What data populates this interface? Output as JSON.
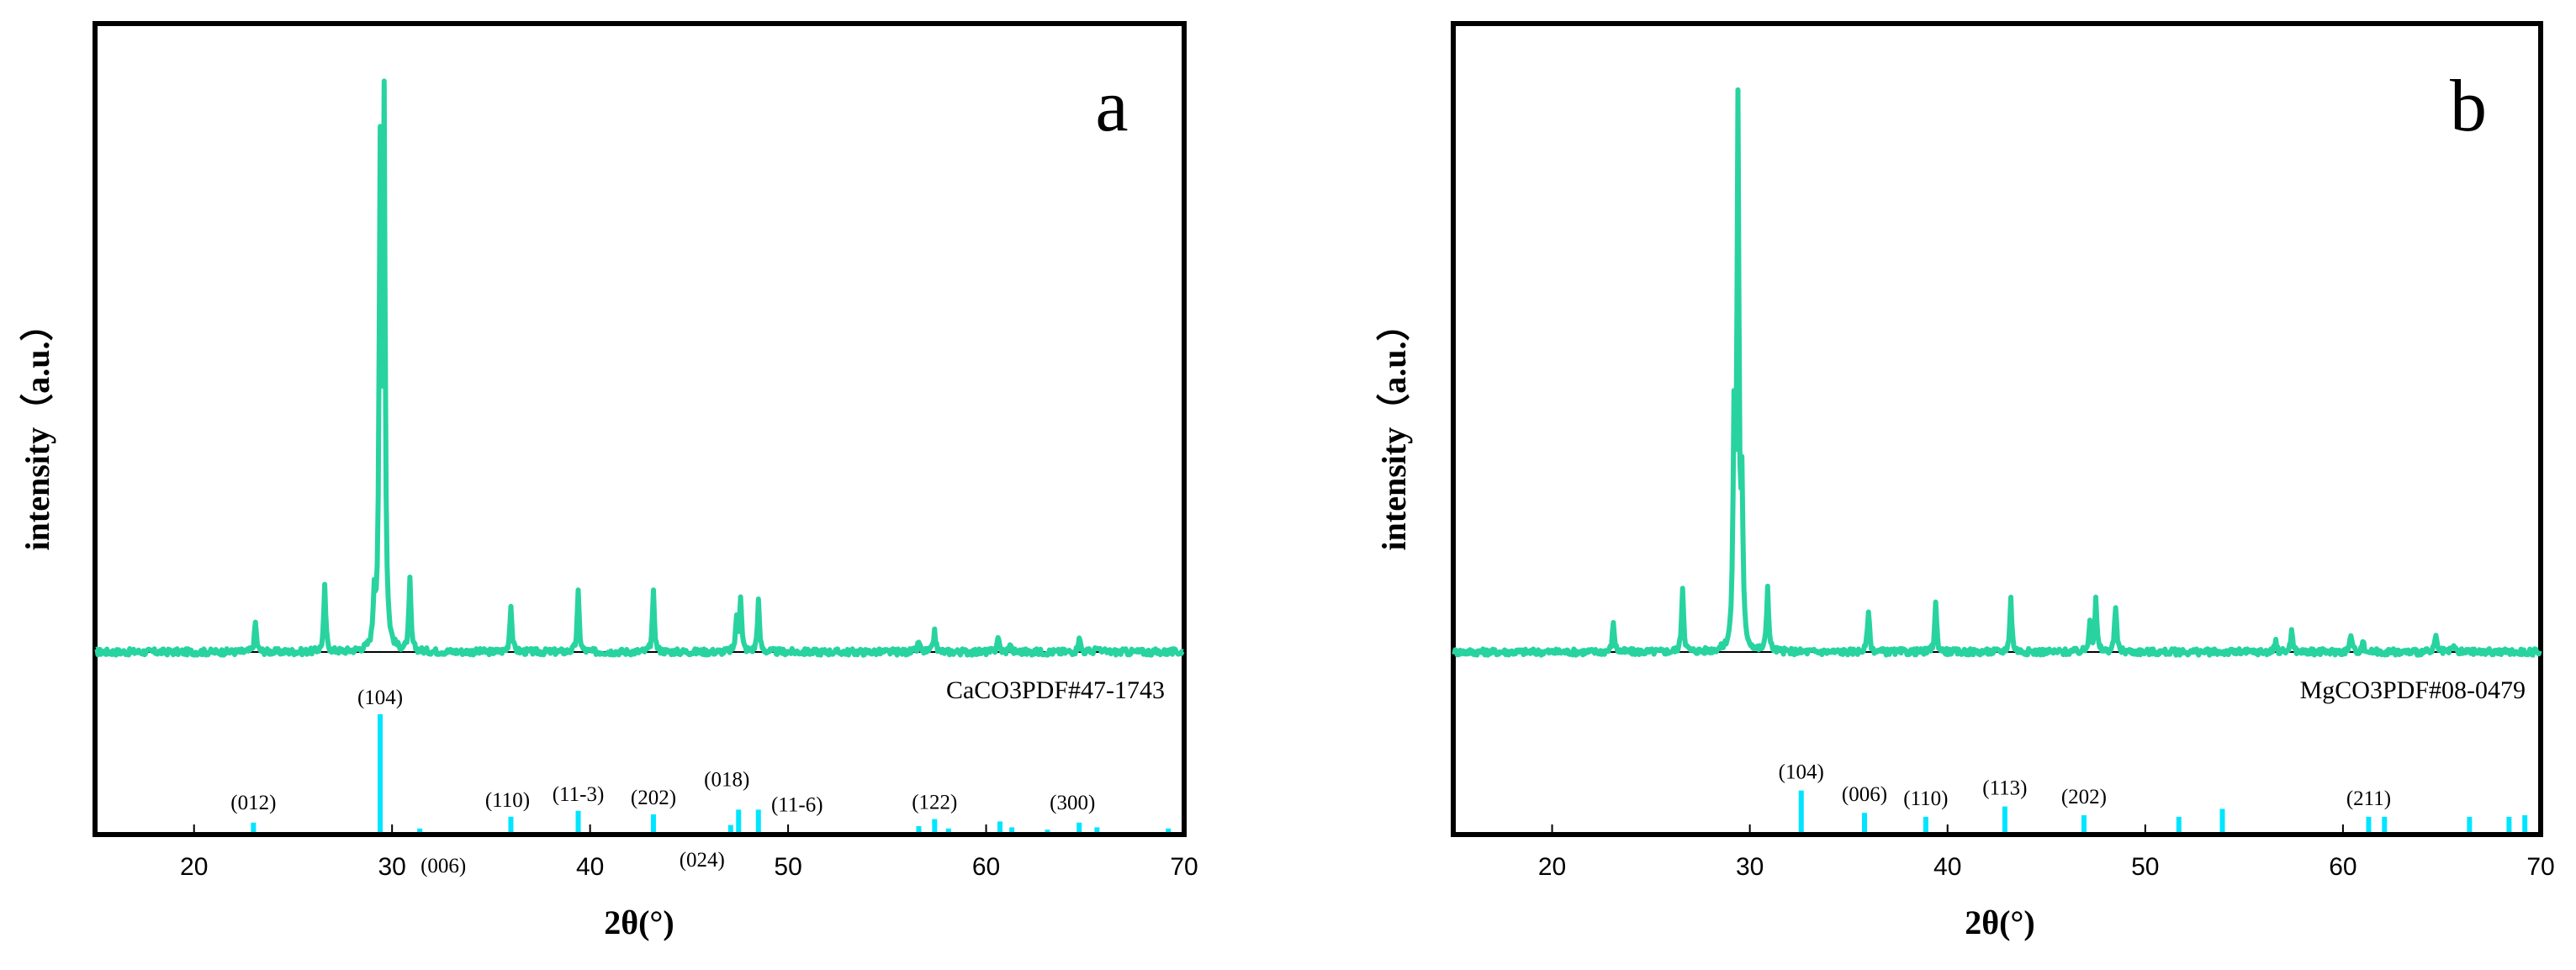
{
  "colors": {
    "pattern": "#28d3a0",
    "reference": "#00e5ff",
    "frame": "#000000"
  },
  "chart_data": [
    {
      "type": "line",
      "panel": "a",
      "title": "",
      "xlabel": "2θ(°)",
      "ylabel": "intensity（a.u.）",
      "xlim": [
        15,
        70
      ],
      "xticks": [
        20,
        30,
        40,
        50,
        60,
        70
      ],
      "grid": false,
      "pattern_peaks": [
        {
          "x": 23.1,
          "h": 0.055
        },
        {
          "x": 26.6,
          "h": 0.12
        },
        {
          "x": 29.1,
          "h": 0.09
        },
        {
          "x": 29.4,
          "h": 0.89
        },
        {
          "x": 29.6,
          "h": 0.99
        },
        {
          "x": 30.9,
          "h": 0.13
        },
        {
          "x": 36.0,
          "h": 0.09
        },
        {
          "x": 39.4,
          "h": 0.11
        },
        {
          "x": 43.2,
          "h": 0.11
        },
        {
          "x": 47.4,
          "h": 0.06
        },
        {
          "x": 47.6,
          "h": 0.1
        },
        {
          "x": 48.5,
          "h": 0.095
        },
        {
          "x": 56.6,
          "h": 0.02
        },
        {
          "x": 57.4,
          "h": 0.04
        },
        {
          "x": 60.6,
          "h": 0.03
        },
        {
          "x": 61.2,
          "h": 0.015
        },
        {
          "x": 64.7,
          "h": 0.03
        },
        {
          "x": 65.6,
          "h": 0.012
        }
      ],
      "reference": {
        "label": "CaCO3PDF#47-1743",
        "lines": [
          {
            "x": 23.0,
            "h": 0.08,
            "hkl": "(012)"
          },
          {
            "x": 29.4,
            "h": 1.0,
            "hkl": "(104)"
          },
          {
            "x": 31.4,
            "h": 0.03,
            "hkl": "(006)"
          },
          {
            "x": 36.0,
            "h": 0.13,
            "hkl": "(110)"
          },
          {
            "x": 39.4,
            "h": 0.18,
            "hkl": "(11-3)"
          },
          {
            "x": 43.2,
            "h": 0.15,
            "hkl": "(202)"
          },
          {
            "x": 47.1,
            "h": 0.06,
            "hkl": "(024)"
          },
          {
            "x": 47.5,
            "h": 0.19,
            "hkl": "(018)"
          },
          {
            "x": 48.5,
            "h": 0.19,
            "hkl": "(11-6)"
          },
          {
            "x": 56.6,
            "h": 0.05,
            "hkl": ""
          },
          {
            "x": 57.4,
            "h": 0.11,
            "hkl": "(122)"
          },
          {
            "x": 58.1,
            "h": 0.03,
            "hkl": ""
          },
          {
            "x": 60.7,
            "h": 0.09,
            "hkl": ""
          },
          {
            "x": 61.3,
            "h": 0.04,
            "hkl": ""
          },
          {
            "x": 63.1,
            "h": 0.02,
            "hkl": ""
          },
          {
            "x": 64.7,
            "h": 0.08,
            "hkl": "(300)"
          },
          {
            "x": 65.6,
            "h": 0.04,
            "hkl": ""
          },
          {
            "x": 69.2,
            "h": 0.03,
            "hkl": ""
          }
        ]
      }
    },
    {
      "type": "line",
      "panel": "b",
      "title": "",
      "xlabel": "2θ(°)",
      "ylabel": "intensity（a.u.）",
      "xlim": [
        15,
        70
      ],
      "xticks": [
        20,
        30,
        40,
        50,
        60,
        70
      ],
      "grid": false,
      "pattern_peaks": [
        {
          "x": 23.1,
          "h": 0.055
        },
        {
          "x": 26.6,
          "h": 0.12
        },
        {
          "x": 29.2,
          "h": 0.4
        },
        {
          "x": 29.4,
          "h": 0.99
        },
        {
          "x": 29.6,
          "h": 0.27
        },
        {
          "x": 30.9,
          "h": 0.12
        },
        {
          "x": 36.0,
          "h": 0.08
        },
        {
          "x": 39.4,
          "h": 0.09
        },
        {
          "x": 43.2,
          "h": 0.1
        },
        {
          "x": 47.2,
          "h": 0.06
        },
        {
          "x": 47.5,
          "h": 0.095
        },
        {
          "x": 48.5,
          "h": 0.085
        },
        {
          "x": 56.6,
          "h": 0.02
        },
        {
          "x": 57.4,
          "h": 0.04
        },
        {
          "x": 60.4,
          "h": 0.035
        },
        {
          "x": 61.0,
          "h": 0.02
        },
        {
          "x": 64.7,
          "h": 0.03
        },
        {
          "x": 65.6,
          "h": 0.012
        }
      ],
      "reference": {
        "label": "MgCO3PDF#08-0479",
        "lines": [
          {
            "x": 32.6,
            "h": 0.52,
            "hkl": "(104)"
          },
          {
            "x": 35.8,
            "h": 0.24,
            "hkl": "(006)"
          },
          {
            "x": 38.9,
            "h": 0.19,
            "hkl": "(110)"
          },
          {
            "x": 42.9,
            "h": 0.32,
            "hkl": "(113)"
          },
          {
            "x": 46.9,
            "h": 0.21,
            "hkl": "(202)"
          },
          {
            "x": 51.7,
            "h": 0.19,
            "hkl": ""
          },
          {
            "x": 53.9,
            "h": 0.29,
            "hkl": ""
          },
          {
            "x": 61.3,
            "h": 0.19,
            "hkl": "(211)"
          },
          {
            "x": 62.1,
            "h": 0.19,
            "hkl": ""
          },
          {
            "x": 66.4,
            "h": 0.19,
            "hkl": ""
          },
          {
            "x": 68.4,
            "h": 0.19,
            "hkl": ""
          },
          {
            "x": 69.2,
            "h": 0.21,
            "hkl": ""
          }
        ]
      }
    }
  ]
}
